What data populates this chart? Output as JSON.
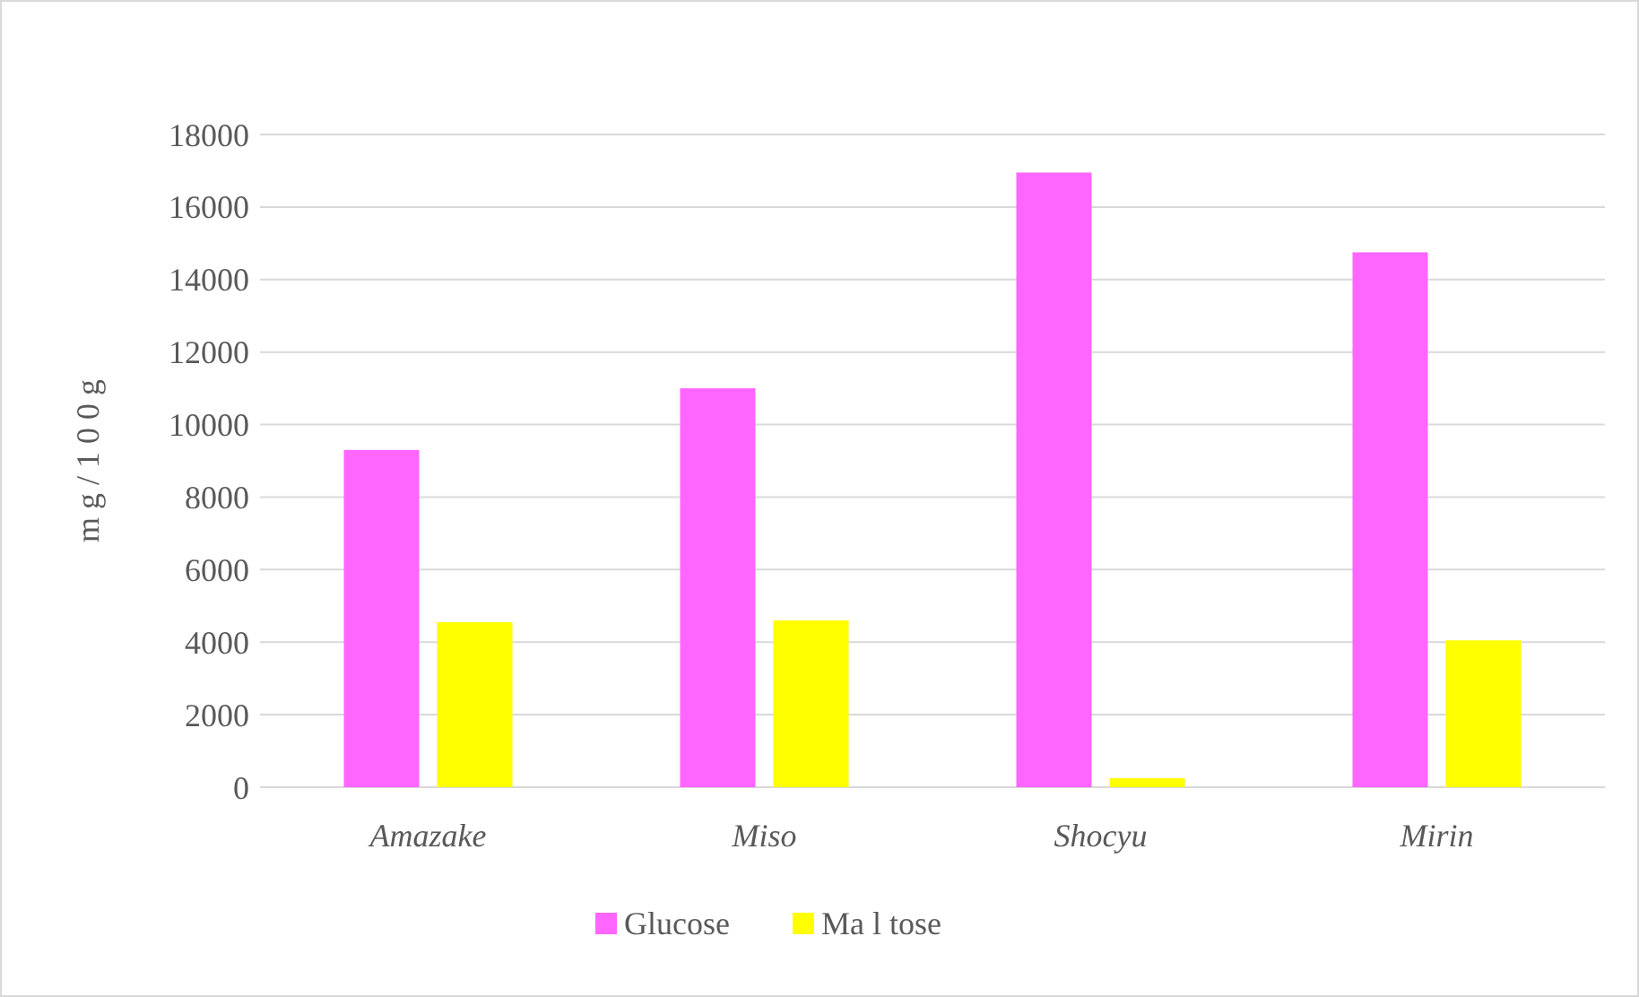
{
  "chart_data": {
    "type": "bar",
    "ylabel": "m g / 1 0 0 g",
    "categories": [
      "Amazake",
      "Miso",
      "Shocyu",
      "Mirin"
    ],
    "series": [
      {
        "name": "Glucose",
        "color": "#ff66ff",
        "values": [
          9300,
          11000,
          16950,
          14750
        ]
      },
      {
        "name": "Ma l tose",
        "color": "#ffff00",
        "values": [
          4550,
          4600,
          250,
          4050
        ]
      }
    ],
    "ylim": [
      0,
      18000
    ],
    "yticks": [
      0,
      2000,
      4000,
      6000,
      8000,
      10000,
      12000,
      14000,
      16000,
      18000
    ],
    "grid": "y",
    "legend": "bottom"
  }
}
